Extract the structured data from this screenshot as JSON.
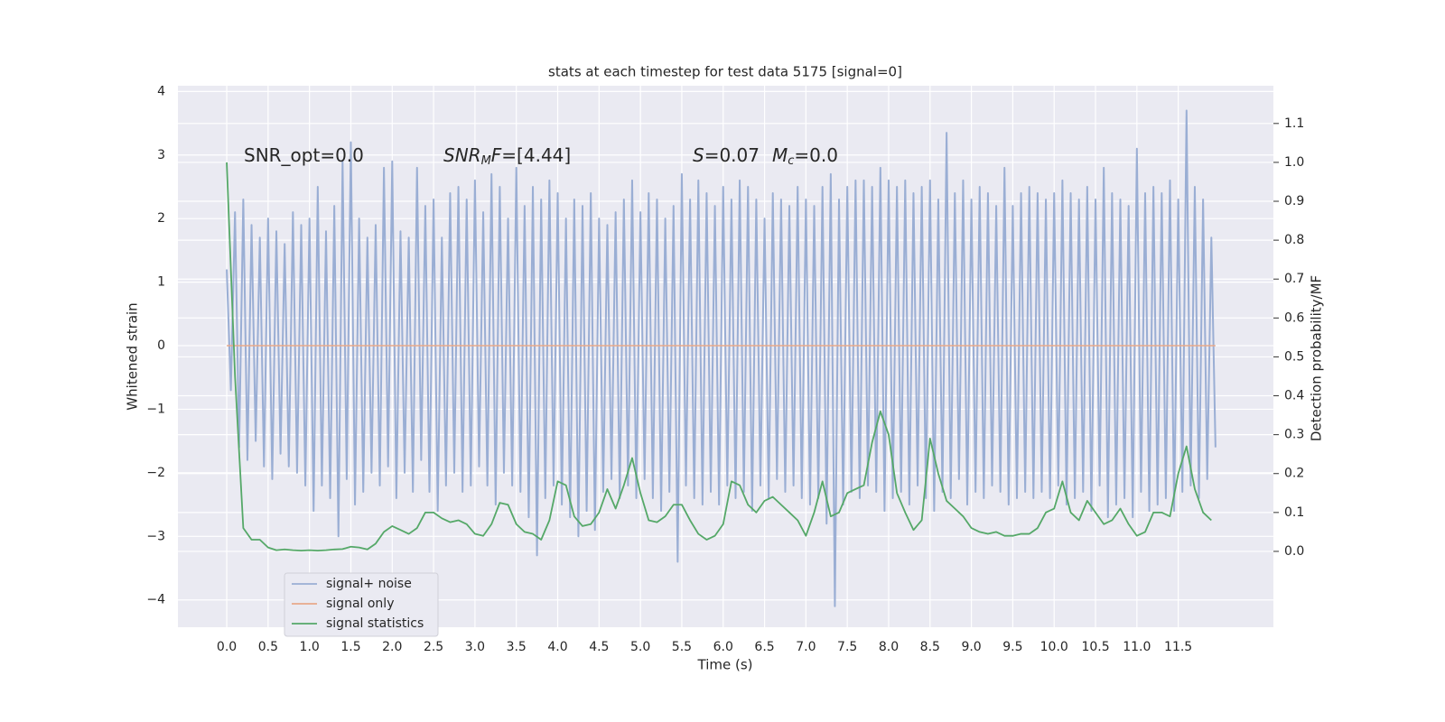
{
  "chart_data": {
    "type": "line",
    "title": "stats at each timestep for test data 5175 [signal=0]",
    "xlabel": "Time (s)",
    "ylabel": "Whitened strain",
    "y2label": "Detection probability/MF",
    "xlim": [
      -0.59,
      12.65
    ],
    "ylim": [
      -4.43,
      4.09
    ],
    "y2lim": [
      -0.195,
      1.197
    ],
    "xticks": [
      {
        "value": 0,
        "label": "0.0"
      },
      {
        "value": 0.5,
        "label": "0.5"
      },
      {
        "value": 1,
        "label": "1.0"
      },
      {
        "value": 1.5,
        "label": "1.5"
      },
      {
        "value": 2,
        "label": "2.0"
      },
      {
        "value": 2.5,
        "label": "2.5"
      },
      {
        "value": 3,
        "label": "3.0"
      },
      {
        "value": 3.5,
        "label": "3.5"
      },
      {
        "value": 4,
        "label": "4.0"
      },
      {
        "value": 4.5,
        "label": "4.5"
      },
      {
        "value": 5,
        "label": "5.0"
      },
      {
        "value": 5.5,
        "label": "5.5"
      },
      {
        "value": 6,
        "label": "6.0"
      },
      {
        "value": 6.5,
        "label": "6.5"
      },
      {
        "value": 7,
        "label": "7.0"
      },
      {
        "value": 7.5,
        "label": "7.5"
      },
      {
        "value": 8,
        "label": "8.0"
      },
      {
        "value": 8.5,
        "label": "8.5"
      },
      {
        "value": 9,
        "label": "9.0"
      },
      {
        "value": 9.5,
        "label": "9.5"
      },
      {
        "value": 10,
        "label": "10.0"
      },
      {
        "value": 10.5,
        "label": "10.5"
      },
      {
        "value": 11,
        "label": "11.0"
      },
      {
        "value": 11.5,
        "label": "11.5"
      }
    ],
    "yticks": [
      {
        "value": -4,
        "label": "−4"
      },
      {
        "value": -3,
        "label": "−3"
      },
      {
        "value": -2,
        "label": "−2"
      },
      {
        "value": -1,
        "label": "−1"
      },
      0,
      1,
      2,
      3,
      4
    ],
    "y2ticks": [
      {
        "value": 0,
        "label": "0.0"
      },
      {
        "value": 0.1,
        "label": "0.1"
      },
      {
        "value": 0.2,
        "label": "0.2"
      },
      {
        "value": 0.3,
        "label": "0.3"
      },
      {
        "value": 0.4,
        "label": "0.4"
      },
      {
        "value": 0.5,
        "label": "0.5"
      },
      {
        "value": 0.6,
        "label": "0.6"
      },
      {
        "value": 0.7,
        "label": "0.7"
      },
      {
        "value": 0.8,
        "label": "0.8"
      },
      {
        "value": 0.9,
        "label": "0.9"
      },
      {
        "value": 1.0,
        "label": "1.0"
      },
      {
        "value": 1.1,
        "label": "1.1"
      }
    ],
    "grid": true,
    "legend": "lower left",
    "annotations": [
      [
        {
          "text": "SNR_opt=0.0"
        }
      ],
      [
        {
          "text": "SNR",
          "italic": true
        },
        {
          "text": "M",
          "italic": true,
          "sub": true
        },
        {
          "text": "F",
          "italic": true
        },
        {
          "text": "=[4.44]"
        }
      ],
      [
        {
          "text": "S",
          "italic": true
        },
        {
          "text": "=0.07"
        },
        {
          "text": "M",
          "italic": true
        },
        {
          "text": "c",
          "italic": true,
          "sub": true
        },
        {
          "text": "=0.0"
        }
      ]
    ],
    "series": [
      {
        "name": "signal+ noise",
        "color": "#9aaed4",
        "width": 2,
        "x": [
          0,
          0.05,
          0.1,
          0.15,
          0.2,
          0.25,
          0.3,
          0.35,
          0.4,
          0.45,
          0.5,
          0.55,
          0.6,
          0.65,
          0.7,
          0.75,
          0.8,
          0.85,
          0.9,
          0.95,
          1,
          1.05,
          1.1,
          1.15,
          1.2,
          1.25,
          1.3,
          1.35,
          1.4,
          1.45,
          1.5,
          1.55,
          1.6,
          1.65,
          1.7,
          1.75,
          1.8,
          1.85,
          1.9,
          1.95,
          2,
          2.05,
          2.1,
          2.15,
          2.2,
          2.25,
          2.3,
          2.35,
          2.4,
          2.45,
          2.5,
          2.55,
          2.6,
          2.65,
          2.7,
          2.75,
          2.8,
          2.85,
          2.9,
          2.95,
          3,
          3.05,
          3.1,
          3.15,
          3.2,
          3.25,
          3.3,
          3.35,
          3.4,
          3.45,
          3.5,
          3.55,
          3.6,
          3.65,
          3.7,
          3.75,
          3.8,
          3.85,
          3.9,
          3.95,
          4,
          4.05,
          4.1,
          4.15,
          4.2,
          4.25,
          4.3,
          4.35,
          4.4,
          4.45,
          4.5,
          4.55,
          4.6,
          4.65,
          4.7,
          4.75,
          4.8,
          4.85,
          4.9,
          4.95,
          5,
          5.05,
          5.1,
          5.15,
          5.2,
          5.25,
          5.3,
          5.35,
          5.4,
          5.45,
          5.5,
          5.55,
          5.6,
          5.65,
          5.7,
          5.75,
          5.8,
          5.85,
          5.9,
          5.95,
          6,
          6.05,
          6.1,
          6.15,
          6.2,
          6.25,
          6.3,
          6.35,
          6.4,
          6.45,
          6.5,
          6.55,
          6.6,
          6.65,
          6.7,
          6.75,
          6.8,
          6.85,
          6.9,
          6.95,
          7,
          7.05,
          7.1,
          7.15,
          7.2,
          7.25,
          7.3,
          7.35,
          7.4,
          7.45,
          7.5,
          7.55,
          7.6,
          7.65,
          7.7,
          7.75,
          7.8,
          7.85,
          7.9,
          7.95,
          8,
          8.05,
          8.1,
          8.15,
          8.2,
          8.25,
          8.3,
          8.35,
          8.4,
          8.45,
          8.5,
          8.55,
          8.6,
          8.65,
          8.7,
          8.75,
          8.8,
          8.85,
          8.9,
          8.95,
          9,
          9.05,
          9.1,
          9.15,
          9.2,
          9.25,
          9.3,
          9.35,
          9.4,
          9.45,
          9.5,
          9.55,
          9.6,
          9.65,
          9.7,
          9.75,
          9.8,
          9.85,
          9.9,
          9.95,
          10,
          10.05,
          10.1,
          10.15,
          10.2,
          10.25,
          10.3,
          10.35,
          10.4,
          10.45,
          10.5,
          10.55,
          10.6,
          10.65,
          10.7,
          10.75,
          10.8,
          10.85,
          10.9,
          10.95,
          11,
          11.05,
          11.1,
          11.15,
          11.2,
          11.25,
          11.3,
          11.35,
          11.4,
          11.45,
          11.5,
          11.55,
          11.6,
          11.65,
          11.7,
          11.75,
          11.8,
          11.85,
          11.9,
          11.95
        ],
        "values": [
          1.2,
          -0.7,
          2.1,
          -1.6,
          2.3,
          -1.8,
          1.9,
          -1.5,
          1.7,
          -1.9,
          2.0,
          -2.1,
          1.8,
          -1.7,
          1.6,
          -1.9,
          2.1,
          -2.0,
          1.9,
          -2.2,
          2.0,
          -2.6,
          2.5,
          -2.2,
          1.8,
          -2.4,
          2.2,
          -3.0,
          2.9,
          -2.1,
          3.2,
          -2.5,
          2.0,
          -2.3,
          1.7,
          -2.0,
          1.9,
          -2.2,
          2.8,
          -1.9,
          2.9,
          -2.4,
          1.8,
          -2.0,
          1.7,
          -2.3,
          2.8,
          -1.8,
          2.2,
          -2.3,
          2.3,
          -2.6,
          1.7,
          -2.2,
          2.4,
          -2.0,
          2.5,
          -2.3,
          2.3,
          -2.2,
          2.6,
          -1.9,
          2.1,
          -2.2,
          2.7,
          -2.5,
          2.5,
          -2.0,
          2.0,
          -2.2,
          2.8,
          -2.3,
          2.2,
          -2.7,
          2.5,
          -3.3,
          2.3,
          -2.4,
          2.6,
          -2.2,
          2.4,
          -2.5,
          2.0,
          -2.7,
          2.3,
          -3.0,
          2.2,
          -2.6,
          2.4,
          -2.9,
          2.0,
          -2.3,
          1.9,
          -2.1,
          2.1,
          -2.4,
          2.3,
          -2.2,
          2.6,
          -2.4,
          2.1,
          -2.1,
          2.4,
          -2.4,
          2.3,
          -2.6,
          2.0,
          -2.3,
          2.2,
          -3.4,
          2.7,
          -2.2,
          2.3,
          -2.4,
          2.6,
          -2.5,
          2.4,
          -2.3,
          2.2,
          -2.5,
          2.5,
          -2.2,
          2.3,
          -2.4,
          2.6,
          -2.3,
          2.5,
          -2.6,
          2.3,
          -2.2,
          2.0,
          -2.4,
          2.4,
          -2.1,
          2.3,
          -2.3,
          2.2,
          -2.2,
          2.5,
          -2.4,
          2.3,
          -2.5,
          2.2,
          -2.4,
          2.5,
          -2.8,
          2.7,
          -4.1,
          2.3,
          -2.5,
          2.5,
          -2.3,
          2.6,
          -2.4,
          2.6,
          -2.2,
          2.5,
          -2.3,
          2.8,
          -2.6,
          2.6,
          -2.4,
          2.5,
          -2.3,
          2.6,
          -2.5,
          2.4,
          -2.2,
          2.5,
          -2.4,
          2.6,
          -2.6,
          2.3,
          -2.3,
          3.35,
          -2.4,
          2.4,
          -2.1,
          2.6,
          -2.5,
          2.3,
          -2.3,
          2.5,
          -2.4,
          2.4,
          -2.2,
          2.2,
          -2.3,
          2.8,
          -2.5,
          2.2,
          -2.4,
          2.4,
          -2.3,
          2.5,
          -2.4,
          2.4,
          -2.3,
          2.3,
          -2.4,
          2.4,
          -2.2,
          2.6,
          -2.5,
          2.4,
          -2.4,
          2.3,
          -2.3,
          2.5,
          -2.6,
          2.3,
          -2.2,
          2.8,
          -2.7,
          2.4,
          -2.5,
          2.3,
          -2.4,
          2.2,
          -2.7,
          3.1,
          -2.3,
          2.4,
          -2.6,
          2.5,
          -2.5,
          2.4,
          -2.4,
          2.6,
          -2.6,
          2.3,
          -2.3,
          3.7,
          -2.2,
          2.5,
          -2.4,
          2.3,
          -2.1,
          1.7,
          -1.6
        ]
      },
      {
        "name": "signal only",
        "color": "#e8a98a",
        "width": 1.5,
        "x": [
          0,
          11.95
        ],
        "values": [
          0,
          0
        ]
      },
      {
        "name": "signal statistics",
        "color": "#55a868",
        "width": 1.8,
        "axis": "y2",
        "x": [
          0,
          0.1,
          0.2,
          0.3,
          0.4,
          0.5,
          0.6,
          0.7,
          0.8,
          0.9,
          1,
          1.1,
          1.2,
          1.3,
          1.4,
          1.5,
          1.6,
          1.7,
          1.8,
          1.9,
          2,
          2.1,
          2.2,
          2.3,
          2.4,
          2.5,
          2.6,
          2.7,
          2.8,
          2.9,
          3,
          3.1,
          3.2,
          3.3,
          3.4,
          3.5,
          3.6,
          3.7,
          3.8,
          3.9,
          4,
          4.1,
          4.2,
          4.3,
          4.4,
          4.5,
          4.6,
          4.7,
          4.8,
          4.9,
          5,
          5.1,
          5.2,
          5.3,
          5.4,
          5.5,
          5.6,
          5.7,
          5.8,
          5.9,
          6,
          6.1,
          6.2,
          6.3,
          6.4,
          6.5,
          6.6,
          6.7,
          6.8,
          6.9,
          7,
          7.1,
          7.2,
          7.3,
          7.4,
          7.5,
          7.6,
          7.7,
          7.8,
          7.9,
          8,
          8.1,
          8.2,
          8.3,
          8.4,
          8.5,
          8.6,
          8.7,
          8.8,
          8.9,
          9,
          9.1,
          9.2,
          9.3,
          9.4,
          9.5,
          9.6,
          9.7,
          9.8,
          9.9,
          10,
          10.1,
          10.2,
          10.3,
          10.4,
          10.5,
          10.6,
          10.7,
          10.8,
          10.9,
          11,
          11.1,
          11.2,
          11.3,
          11.4,
          11.5,
          11.6,
          11.7,
          11.8,
          11.9
        ],
        "values": [
          1.0,
          0.45,
          0.06,
          0.03,
          0.03,
          0.01,
          0.003,
          0.005,
          0.003,
          0.002,
          0.003,
          0.002,
          0.003,
          0.005,
          0.006,
          0.012,
          0.01,
          0.005,
          0.02,
          0.05,
          0.065,
          0.055,
          0.045,
          0.06,
          0.1,
          0.1,
          0.085,
          0.075,
          0.08,
          0.07,
          0.045,
          0.04,
          0.07,
          0.125,
          0.12,
          0.07,
          0.05,
          0.045,
          0.03,
          0.08,
          0.18,
          0.17,
          0.09,
          0.065,
          0.07,
          0.1,
          0.16,
          0.11,
          0.17,
          0.24,
          0.15,
          0.08,
          0.075,
          0.09,
          0.12,
          0.12,
          0.08,
          0.045,
          0.03,
          0.04,
          0.07,
          0.18,
          0.17,
          0.12,
          0.1,
          0.13,
          0.14,
          0.12,
          0.1,
          0.08,
          0.04,
          0.1,
          0.18,
          0.09,
          0.1,
          0.15,
          0.16,
          0.17,
          0.28,
          0.36,
          0.3,
          0.15,
          0.1,
          0.055,
          0.08,
          0.29,
          0.2,
          0.13,
          0.11,
          0.09,
          0.06,
          0.05,
          0.045,
          0.05,
          0.04,
          0.04,
          0.045,
          0.045,
          0.06,
          0.1,
          0.11,
          0.18,
          0.1,
          0.08,
          0.13,
          0.1,
          0.07,
          0.08,
          0.11,
          0.07,
          0.04,
          0.05,
          0.1,
          0.1,
          0.09,
          0.2,
          0.27,
          0.16,
          0.1,
          0.08
        ]
      }
    ]
  }
}
